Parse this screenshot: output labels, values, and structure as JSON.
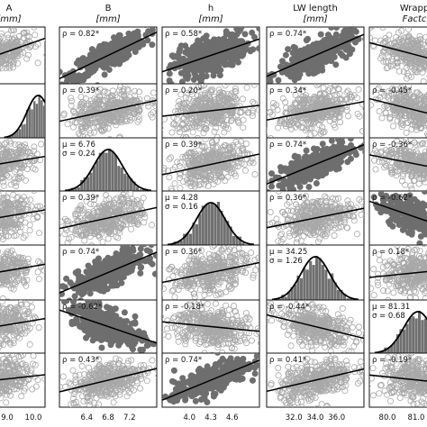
{
  "chart_data": {
    "type": "scatter",
    "layout": "scatter-matrix",
    "variables": [
      {
        "name": "A",
        "unit": "[mm]",
        "ticks": [
          "9.0",
          "10.0"
        ]
      },
      {
        "name": "B",
        "unit": "[mm]",
        "ticks": [
          "6.4",
          "6.8",
          "7.2"
        ]
      },
      {
        "name": "h",
        "unit": "[mm]",
        "ticks": [
          "4.0",
          "4.3",
          "4.6"
        ]
      },
      {
        "name": "LW length",
        "unit": "[mm]",
        "ticks": [
          "32.0",
          "34.0",
          "36.0"
        ]
      },
      {
        "name": "Wrapp",
        "unit": "Factc",
        "ticks": [
          "80.0",
          "81.0"
        ]
      }
    ],
    "diagonal": [
      {
        "variable": "A",
        "mu": "",
        "sigma": ""
      },
      {
        "variable": "B",
        "mu": "μ = 6.76",
        "sigma": "σ = 0.24"
      },
      {
        "variable": "h",
        "mu": "μ = 4.28",
        "sigma": "σ = 0.16"
      },
      {
        "variable": "LW length",
        "mu": "μ = 34.25",
        "sigma": "σ = 1.26"
      },
      {
        "variable": "Wrapping Factor",
        "mu": "μ = 81.31",
        "sigma": "σ = 0.68"
      }
    ],
    "correlations": [
      {
        "row": 0,
        "col": 1,
        "label": "ρ = 0.82*",
        "rho": 0.82,
        "significant": true
      },
      {
        "row": 0,
        "col": 2,
        "label": "ρ = 0.58*",
        "rho": 0.58,
        "significant": true
      },
      {
        "row": 0,
        "col": 3,
        "label": "ρ = 0.74*",
        "rho": 0.74,
        "significant": true
      },
      {
        "row": 0,
        "col": 4,
        "label": "",
        "rho": -0.45,
        "significant": false
      },
      {
        "row": 1,
        "col": 1,
        "label": "ρ = 0.39*",
        "rho": 0.39,
        "significant": false
      },
      {
        "row": 1,
        "col": 2,
        "label": "ρ = 0.20*",
        "rho": 0.2,
        "significant": false
      },
      {
        "row": 1,
        "col": 3,
        "label": "ρ = 0.34*",
        "rho": 0.34,
        "significant": false
      },
      {
        "row": 1,
        "col": 4,
        "label": "ρ = -0.45*",
        "rho": -0.45,
        "significant": false
      },
      {
        "row": 2,
        "col": 2,
        "label": "ρ = 0.39*",
        "rho": 0.39,
        "significant": false
      },
      {
        "row": 2,
        "col": 3,
        "label": "ρ = 0.74*",
        "rho": 0.74,
        "significant": true
      },
      {
        "row": 2,
        "col": 4,
        "label": "ρ = -0.36*",
        "rho": -0.36,
        "significant": false
      },
      {
        "row": 3,
        "col": 1,
        "label": "ρ = 0.39*",
        "rho": 0.39,
        "significant": false
      },
      {
        "row": 3,
        "col": 3,
        "label": "ρ = 0.36*",
        "rho": 0.36,
        "significant": false
      },
      {
        "row": 3,
        "col": 4,
        "label": "ρ = -0.62*",
        "rho": -0.62,
        "significant": true
      },
      {
        "row": 4,
        "col": 1,
        "label": "ρ = 0.74*",
        "rho": 0.74,
        "significant": true
      },
      {
        "row": 4,
        "col": 2,
        "label": "ρ = 0.36*",
        "rho": 0.36,
        "significant": false
      },
      {
        "row": 4,
        "col": 4,
        "label": "ρ = 0.18*",
        "rho": 0.18,
        "significant": false
      },
      {
        "row": 5,
        "col": 1,
        "label": "ρ = -0.62*",
        "rho": -0.62,
        "significant": true
      },
      {
        "row": 5,
        "col": 2,
        "label": "ρ = -0.18*",
        "rho": -0.18,
        "significant": false
      },
      {
        "row": 5,
        "col": 3,
        "label": "ρ = -0.44*",
        "rho": -0.44,
        "significant": false
      },
      {
        "row": 5,
        "col": 4,
        "label": "ρ = -0.44*",
        "rho": -0.44,
        "significant": false
      },
      {
        "row": 6,
        "col": 1,
        "label": "ρ = 0.43*",
        "rho": 0.43,
        "significant": false
      },
      {
        "row": 6,
        "col": 2,
        "label": "ρ = 0.74*",
        "rho": 0.74,
        "significant": true
      },
      {
        "row": 6,
        "col": 3,
        "label": "ρ = 0.41*",
        "rho": 0.41,
        "significant": false
      },
      {
        "row": 6,
        "col": 4,
        "label": "ρ = -0.19*",
        "rho": -0.19,
        "significant": false
      },
      {
        "row": 0,
        "col": 0,
        "label": "",
        "rho": 0.6,
        "significant": false
      },
      {
        "row": 2,
        "col": 0,
        "label": "",
        "rho": 0.3,
        "significant": false
      },
      {
        "row": 3,
        "col": 0,
        "label": "",
        "rho": 0.3,
        "significant": false
      },
      {
        "row": 4,
        "col": 0,
        "label": "",
        "rho": 0.3,
        "significant": false
      },
      {
        "row": 5,
        "col": 0,
        "label": "",
        "rho": 0.3,
        "significant": false
      },
      {
        "row": 6,
        "col": 0,
        "label": "",
        "rho": 0.2,
        "significant": false
      },
      {
        "row": 4,
        "col": 3,
        "label": "",
        "rho": -0.4,
        "significant": false
      }
    ],
    "histograms": [
      {
        "row": 1,
        "col": 0
      },
      {
        "row": 2,
        "col": 1
      },
      {
        "row": 3,
        "col": 2
      },
      {
        "row": 4,
        "col": 3
      },
      {
        "row": 5,
        "col": 4
      }
    ],
    "colors": {
      "significant_fill": "#6e6e6e",
      "nonsignificant_stroke": "#a8a8a8",
      "histogram_fill": "#707070",
      "fit_line": "#000000"
    }
  }
}
